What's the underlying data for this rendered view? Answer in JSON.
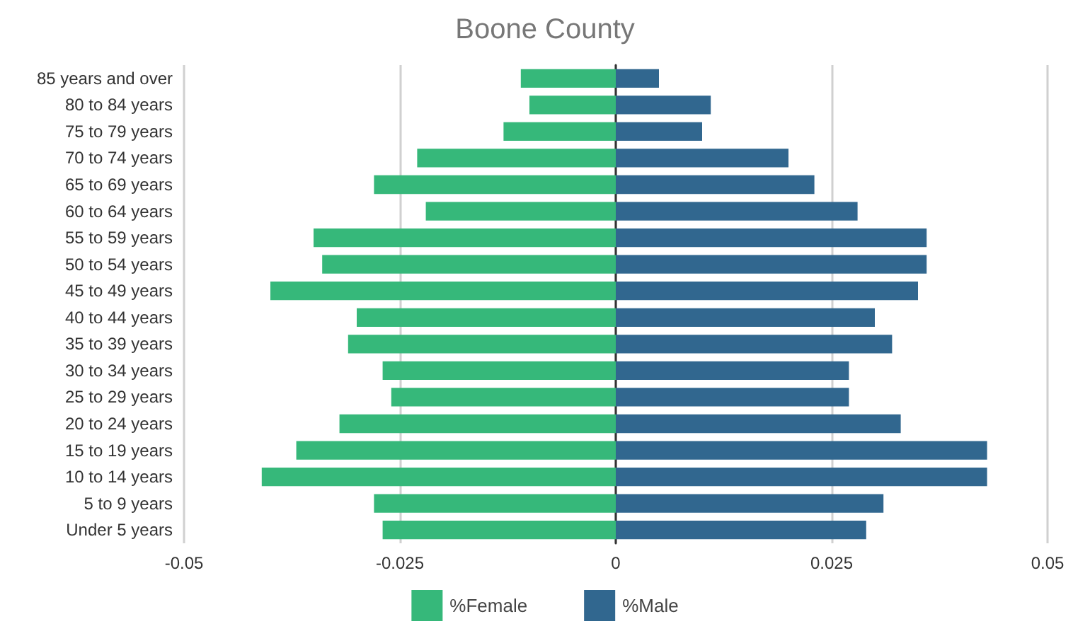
{
  "chart_data": {
    "type": "bar",
    "title": "Boone County",
    "orientation": "horizontal",
    "stacked": true,
    "categories": [
      "85 years and over",
      "80 to 84 years",
      "75 to 79 years",
      "70 to 74 years",
      "65 to 69 years",
      "60 to 64 years",
      "55 to 59 years",
      "50 to 54 years",
      "45 to 49 years",
      "40 to 44 years",
      "35 to 39 years",
      "30 to 34 years",
      "25 to 29 years",
      "20 to 24 years",
      "15 to 19 years",
      "10 to 14 years",
      "5 to 9 years",
      "Under 5 years"
    ],
    "series": [
      {
        "name": "%Female",
        "color": "#36b87a",
        "values": [
          -0.011,
          -0.01,
          -0.013,
          -0.023,
          -0.028,
          -0.022,
          -0.035,
          -0.034,
          -0.04,
          -0.03,
          -0.031,
          -0.027,
          -0.026,
          -0.032,
          -0.037,
          -0.041,
          -0.028,
          -0.027
        ]
      },
      {
        "name": "%Male",
        "color": "#31678f",
        "values": [
          0.005,
          0.011,
          0.01,
          0.02,
          0.023,
          0.028,
          0.036,
          0.036,
          0.035,
          0.03,
          0.032,
          0.027,
          0.027,
          0.033,
          0.043,
          0.043,
          0.031,
          0.029
        ]
      }
    ],
    "xlim": [
      -0.05,
      0.05
    ],
    "xticks": [
      -0.05,
      -0.025,
      0,
      0.025,
      0.05
    ],
    "grid": "x",
    "legend": "bottom"
  }
}
